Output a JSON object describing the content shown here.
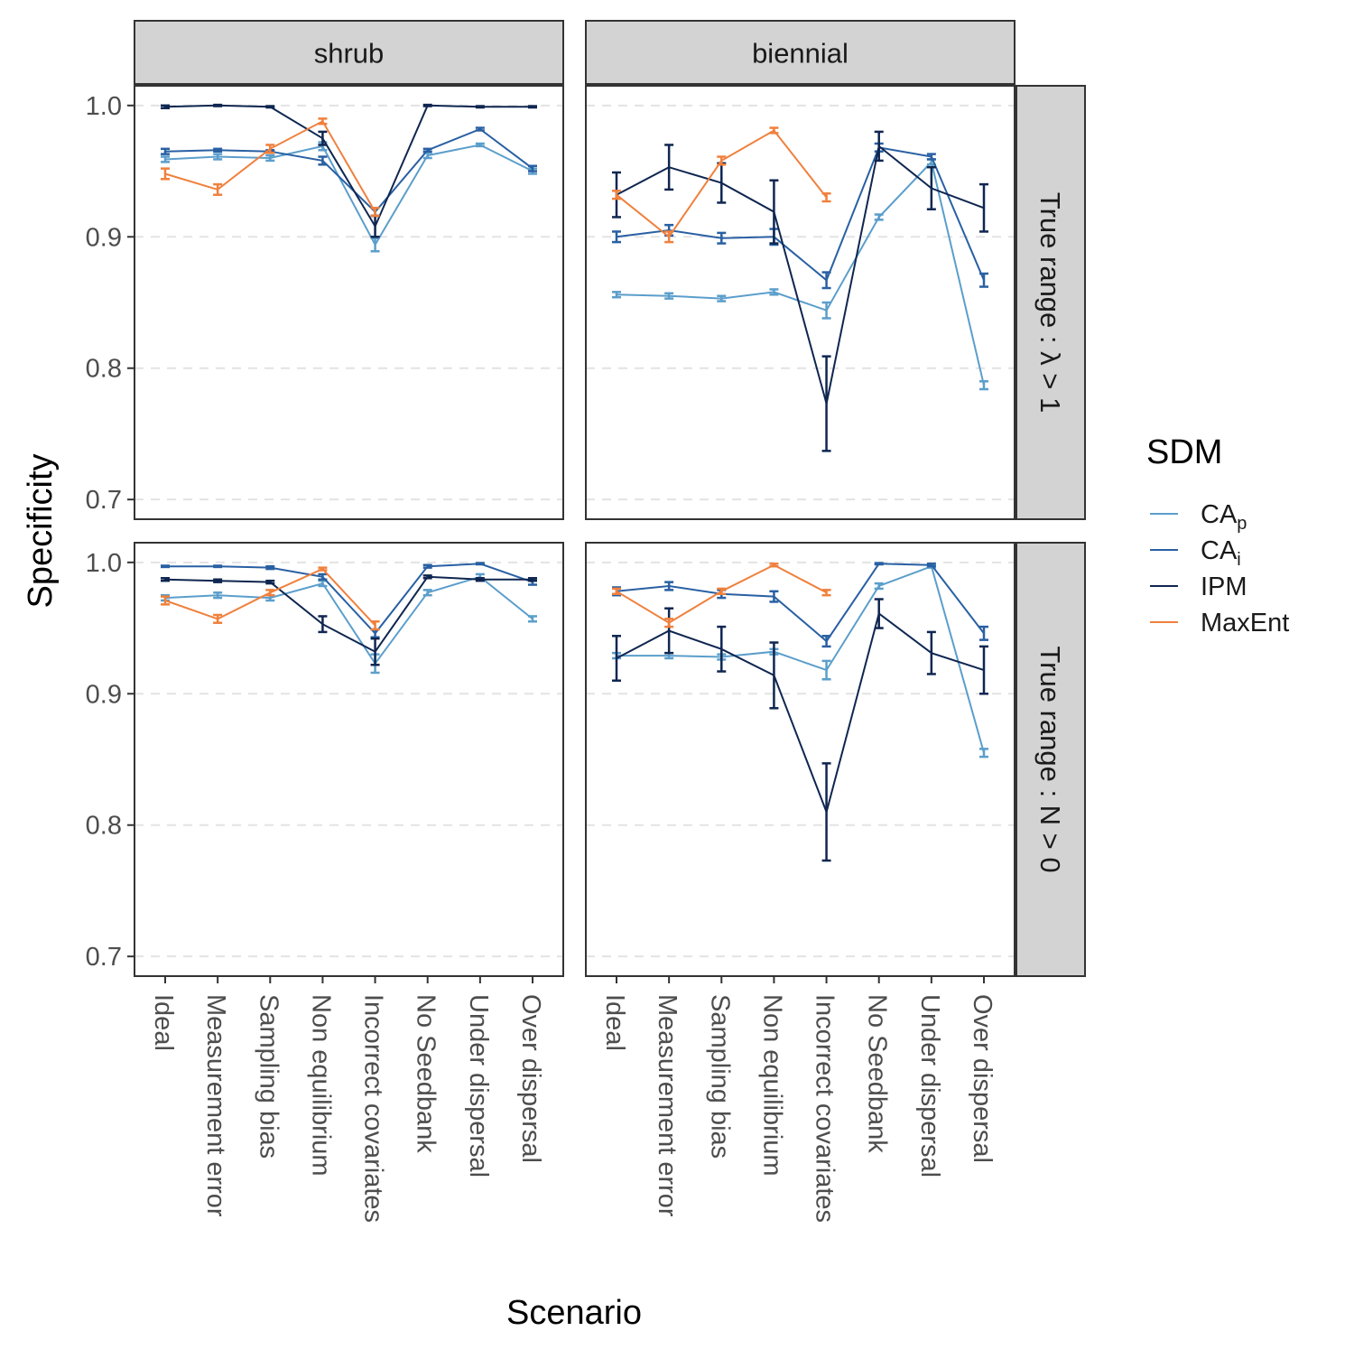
{
  "chart_data": {
    "type": "line",
    "ylabel": "Specificity",
    "xlabel": "Scenario",
    "ylim": [
      0.685,
      1.015
    ],
    "yticks": [
      0.7,
      0.8,
      0.9,
      1.0
    ],
    "ytick_labels": [
      "0.7",
      "0.8",
      "0.9",
      "1.0"
    ],
    "grid": "horizontal dashed",
    "legend_position": "right",
    "legend_title": "SDM",
    "categories": [
      "Ideal",
      "Measurement error",
      "Sampling bias",
      "Non equilibrium",
      "Incorrect covariates",
      "No Seedbank",
      "Under dispersal",
      "Over dispersal"
    ],
    "column_labels": [
      "shrub",
      "biennial"
    ],
    "row_labels": [
      "True range : λ > 1",
      "True range : N > 0"
    ],
    "legend": [
      {
        "key": "cap",
        "label": "CA",
        "sub": "p",
        "color": "#5b9ecb"
      },
      {
        "key": "cai",
        "label": "CA",
        "sub": "i",
        "color": "#2960a3"
      },
      {
        "key": "ipm",
        "label": "IPM",
        "sub": "",
        "color": "#0f2650"
      },
      {
        "key": "maxent",
        "label": "MaxEnt",
        "sub": "",
        "color": "#f0803c"
      }
    ],
    "panels": [
      {
        "column": "shrub",
        "row": "True range : λ > 1",
        "series": [
          {
            "name": "CAp",
            "values": [
              0.959,
              0.961,
              0.96,
              0.969,
              0.894,
              0.962,
              0.97,
              0.95
            ],
            "errors": [
              0.002,
              0.002,
              0.002,
              0.003,
              0.005,
              0.002,
              0.001,
              0.002
            ]
          },
          {
            "name": "CAi",
            "values": [
              0.965,
              0.966,
              0.965,
              0.958,
              0.919,
              0.966,
              0.982,
              0.952
            ],
            "errors": [
              0.002,
              0.001,
              0.001,
              0.003,
              0.003,
              0.001,
              0.001,
              0.002
            ]
          },
          {
            "name": "IPM",
            "values": [
              0.999,
              1.0,
              0.999,
              0.975,
              0.908,
              1.0,
              0.999,
              0.999
            ],
            "errors": [
              0.001,
              0.0005,
              0.0005,
              0.005,
              0.008,
              0.0005,
              0.0005,
              0.0005
            ]
          },
          {
            "name": "MaxEnt",
            "values": [
              0.948,
              0.936,
              0.967,
              0.988,
              0.919,
              null,
              null,
              null
            ],
            "errors": [
              0.004,
              0.004,
              0.003,
              0.002,
              0.003,
              null,
              null,
              null
            ]
          }
        ]
      },
      {
        "column": "biennial",
        "row": "True range : λ > 1",
        "series": [
          {
            "name": "CAp",
            "values": [
              0.856,
              0.855,
              0.853,
              0.858,
              0.844,
              0.915,
              0.957,
              0.787
            ],
            "errors": [
              0.002,
              0.002,
              0.002,
              0.002,
              0.006,
              0.002,
              0.002,
              0.003
            ]
          },
          {
            "name": "CAi",
            "values": [
              0.9,
              0.905,
              0.899,
              0.9,
              0.867,
              0.968,
              0.961,
              0.867
            ],
            "errors": [
              0.004,
              0.004,
              0.004,
              0.006,
              0.006,
              0.003,
              0.002,
              0.005
            ]
          },
          {
            "name": "IPM",
            "values": [
              0.932,
              0.953,
              0.941,
              0.919,
              0.773,
              0.969,
              0.937,
              0.922
            ],
            "errors": [
              0.017,
              0.017,
              0.015,
              0.024,
              0.036,
              0.011,
              0.016,
              0.018
            ]
          },
          {
            "name": "MaxEnt",
            "values": [
              0.932,
              0.9,
              0.958,
              0.981,
              0.93,
              null,
              null,
              null
            ],
            "errors": [
              0.003,
              0.004,
              0.003,
              0.002,
              0.003,
              null,
              null,
              null
            ]
          }
        ]
      },
      {
        "column": "shrub",
        "row": "True range : N > 0",
        "series": [
          {
            "name": "CAp",
            "values": [
              0.973,
              0.975,
              0.973,
              0.984,
              0.923,
              0.977,
              0.989,
              0.957
            ],
            "errors": [
              0.002,
              0.002,
              0.002,
              0.002,
              0.007,
              0.002,
              0.002,
              0.002
            ]
          },
          {
            "name": "CAi",
            "values": [
              0.997,
              0.997,
              0.996,
              0.989,
              0.946,
              0.997,
              0.999,
              0.985
            ],
            "errors": [
              0.0005,
              0.0005,
              0.001,
              0.002,
              0.003,
              0.001,
              0.0005,
              0.002
            ]
          },
          {
            "name": "IPM",
            "values": [
              0.987,
              0.986,
              0.985,
              0.953,
              0.932,
              0.989,
              0.987,
              0.987
            ],
            "errors": [
              0.001,
              0.001,
              0.001,
              0.006,
              0.01,
              0.001,
              0.001,
              0.001
            ]
          },
          {
            "name": "MaxEnt",
            "values": [
              0.971,
              0.957,
              0.977,
              0.995,
              0.952,
              null,
              null,
              null
            ],
            "errors": [
              0.003,
              0.003,
              0.002,
              0.001,
              0.003,
              null,
              null,
              null
            ]
          }
        ]
      },
      {
        "column": "biennial",
        "row": "True range : N > 0",
        "series": [
          {
            "name": "CAp",
            "values": [
              0.929,
              0.929,
              0.928,
              0.932,
              0.918,
              0.982,
              0.997,
              0.855
            ],
            "errors": [
              0.002,
              0.002,
              0.002,
              0.002,
              0.007,
              0.002,
              0.001,
              0.003
            ]
          },
          {
            "name": "CAi",
            "values": [
              0.978,
              0.982,
              0.976,
              0.974,
              0.94,
              0.999,
              0.998,
              0.946
            ],
            "errors": [
              0.003,
              0.003,
              0.003,
              0.004,
              0.004,
              0.0005,
              0.001,
              0.005
            ]
          },
          {
            "name": "IPM",
            "values": [
              0.927,
              0.948,
              0.934,
              0.914,
              0.81,
              0.961,
              0.931,
              0.918
            ],
            "errors": [
              0.017,
              0.017,
              0.017,
              0.025,
              0.037,
              0.011,
              0.016,
              0.018
            ]
          },
          {
            "name": "MaxEnt",
            "values": [
              0.978,
              0.954,
              0.978,
              0.998,
              0.977,
              null,
              null,
              null
            ],
            "errors": [
              0.002,
              0.003,
              0.002,
              0.001,
              0.002,
              null,
              null,
              null
            ]
          }
        ]
      }
    ]
  }
}
